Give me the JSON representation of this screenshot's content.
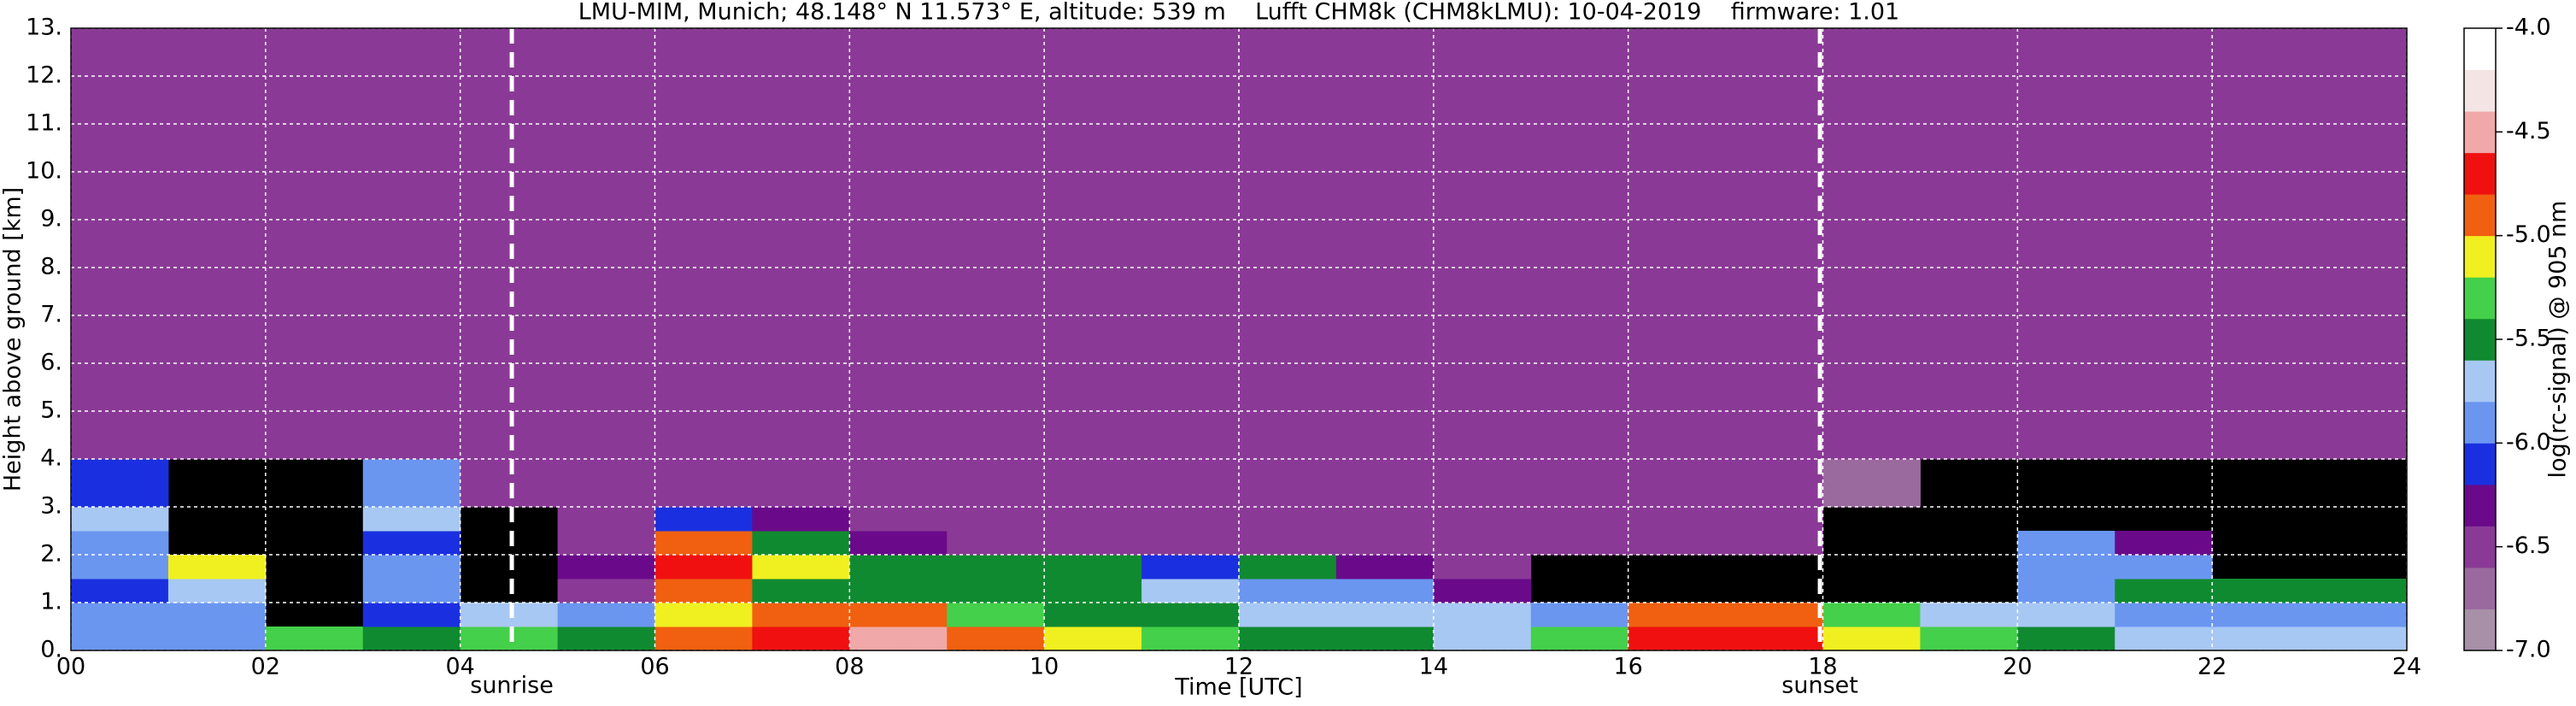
{
  "chart_data": {
    "type": "heatmap",
    "title": "LMU-MIM, Munich; 48.148° N 11.573° E, altitude: 539 m    Lufft CHM8k (CHM8kLMU): 10-04-2019    firmware: 1.01",
    "xlabel": "Time [UTC]",
    "ylabel": "Height above ground [km]",
    "colorbar_label": "log(rc-signal) @ 905 nm",
    "xlim": [
      0,
      24
    ],
    "ylim": [
      0,
      13
    ],
    "xticks": [
      {
        "value": 0,
        "label": "00"
      },
      {
        "value": 2,
        "label": "02"
      },
      {
        "value": 4,
        "label": "04"
      },
      {
        "value": 6,
        "label": "06"
      },
      {
        "value": 8,
        "label": "08"
      },
      {
        "value": 10,
        "label": "10"
      },
      {
        "value": 12,
        "label": "12"
      },
      {
        "value": 14,
        "label": "14"
      },
      {
        "value": 16,
        "label": "16"
      },
      {
        "value": 18,
        "label": "18"
      },
      {
        "value": 20,
        "label": "20"
      },
      {
        "value": 22,
        "label": "22"
      },
      {
        "value": 24,
        "label": "24"
      }
    ],
    "yticks": [
      {
        "value": 0,
        "label": "0."
      },
      {
        "value": 1,
        "label": "1."
      },
      {
        "value": 2,
        "label": "2."
      },
      {
        "value": 3,
        "label": "3."
      },
      {
        "value": 4,
        "label": "4."
      },
      {
        "value": 5,
        "label": "5."
      },
      {
        "value": 6,
        "label": "6."
      },
      {
        "value": 7,
        "label": "7."
      },
      {
        "value": 8,
        "label": "8."
      },
      {
        "value": 9,
        "label": "9."
      },
      {
        "value": 10,
        "label": "10."
      },
      {
        "value": 11,
        "label": "11."
      },
      {
        "value": 12,
        "label": "12."
      },
      {
        "value": 13,
        "label": "13."
      }
    ],
    "grid": true,
    "zlim": [
      -7,
      -4
    ],
    "zticks": [
      {
        "value": -7,
        "label": "-7.0"
      },
      {
        "value": -6.5,
        "label": "-6.5"
      },
      {
        "value": -6,
        "label": "-6.0"
      },
      {
        "value": -5.5,
        "label": "-5.5"
      },
      {
        "value": -5,
        "label": "-5.0"
      },
      {
        "value": -4.5,
        "label": "-4.5"
      },
      {
        "value": -4,
        "label": "-4.0"
      }
    ],
    "colorscale": [
      "#a890a8",
      "#9a6a9e",
      "#8a3a96",
      "#6a0a8a",
      "#1a30e0",
      "#6a96f0",
      "#a8c8f4",
      "#108a30",
      "#44d04a",
      "#f0f020",
      "#f06010",
      "#f01010",
      "#f0a8a8",
      "#f4e4e4",
      "#ffffff"
    ],
    "x_edges": [
      0,
      1,
      2,
      3,
      4,
      5,
      6,
      7,
      8,
      9,
      10,
      11,
      12,
      13,
      14,
      15,
      16,
      17,
      18,
      19,
      20,
      21,
      22,
      23,
      24
    ],
    "y_edges": [
      0,
      0.5,
      1,
      1.5,
      2,
      2.5,
      3,
      4,
      13
    ],
    "z": [
      [
        -5.9,
        -5.9,
        -5.3,
        -5.4,
        -5.3,
        -5.4,
        -5.0,
        -4.8,
        -4.6,
        -4.9,
        -5.2,
        -5.3,
        -5.6,
        -5.6,
        -5.8,
        -5.3,
        -4.8,
        -4.7,
        -5.2,
        -5.3,
        -5.6,
        -5.8,
        -5.8,
        -5.8
      ],
      [
        -6.0,
        -6.0,
        null,
        -6.1,
        -5.7,
        -5.9,
        -5.2,
        -5.0,
        -4.9,
        -5.3,
        -5.5,
        -5.6,
        -5.8,
        -5.8,
        -5.8,
        -5.9,
        -5.0,
        -4.9,
        -5.3,
        -5.7,
        -5.8,
        -5.9,
        -5.9,
        -5.9
      ],
      [
        -6.1,
        -5.8,
        null,
        -6.0,
        null,
        -6.4,
        -5.0,
        -5.4,
        -5.4,
        -5.5,
        -5.6,
        -5.7,
        -6.0,
        -6.0,
        -6.3,
        null,
        null,
        null,
        null,
        null,
        -5.9,
        -5.6,
        -5.6,
        -5.6
      ],
      [
        -6.0,
        -5.2,
        null,
        -6.0,
        null,
        -6.3,
        -4.8,
        -5.2,
        -5.5,
        -5.6,
        -5.6,
        -6.1,
        -5.5,
        -6.2,
        -6.4,
        null,
        null,
        null,
        null,
        null,
        -5.9,
        -5.9,
        null,
        null
      ],
      [
        -6.0,
        null,
        null,
        -6.1,
        null,
        -6.4,
        -4.9,
        -5.6,
        -6.3,
        -6.4,
        -6.5,
        -6.5,
        -6.5,
        -6.5,
        -6.5,
        -6.6,
        -6.6,
        -6.6,
        null,
        null,
        -6.0,
        -6.3,
        null,
        null
      ],
      [
        -5.8,
        null,
        null,
        -5.8,
        null,
        -6.5,
        -6.1,
        -6.3,
        -6.4,
        -6.5,
        -6.5,
        -6.5,
        -6.5,
        -6.5,
        -6.5,
        -6.6,
        -6.6,
        -6.6,
        null,
        null,
        null,
        null,
        null,
        null
      ],
      [
        -6.1,
        null,
        null,
        -6.0,
        -6.6,
        -6.4,
        -6.4,
        -6.4,
        -6.4,
        -6.5,
        -6.5,
        -6.5,
        -6.5,
        -6.5,
        -6.5,
        -6.6,
        -6.6,
        -6.6,
        -6.8,
        null,
        null,
        null,
        null,
        null
      ],
      [
        -6.6,
        -6.6,
        -6.6,
        -6.6,
        -6.6,
        -6.4,
        -6.4,
        -6.4,
        -6.4,
        -6.4,
        -6.4,
        -6.4,
        -6.4,
        -6.4,
        -6.5,
        -6.5,
        -6.5,
        -6.5,
        -6.6,
        -6.6,
        -6.6,
        -6.6,
        -6.6,
        -6.6
      ]
    ],
    "annotations": [
      {
        "x": 4.53,
        "text": "sunrise"
      },
      {
        "x": 17.97,
        "text": "sunset"
      }
    ]
  }
}
